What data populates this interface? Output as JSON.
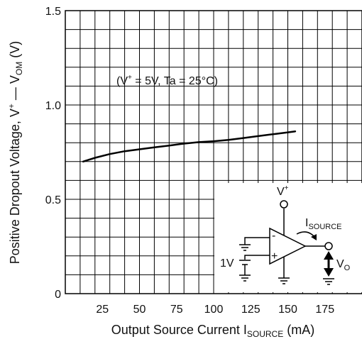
{
  "chart_data": {
    "type": "line",
    "xlabel": {
      "main": "Output Source Current I",
      "sub": "SOURCE",
      "unit": " (mA)"
    },
    "ylabel": {
      "main": "Positive Dropout Voltage, V",
      "sup": "+",
      "dash": " — V",
      "sub": "OM",
      "unit": " (V)"
    },
    "xlim": [
      0,
      200
    ],
    "ylim": [
      0,
      1.5
    ],
    "x_ticks": [
      {
        "value": 25,
        "label": "25"
      },
      {
        "value": 50,
        "label": "50"
      },
      {
        "value": 75,
        "label": "75"
      },
      {
        "value": 100,
        "label": "100"
      },
      {
        "value": 125,
        "label": "125"
      },
      {
        "value": 150,
        "label": "150"
      },
      {
        "value": 175,
        "label": "175"
      }
    ],
    "y_ticks": [
      {
        "value": 0,
        "label": "0"
      },
      {
        "value": 0.5,
        "label": "0.5"
      },
      {
        "value": 1.0,
        "label": "1.0"
      },
      {
        "value": 1.5,
        "label": "1.5"
      }
    ],
    "grid": true,
    "grid_minor_x": 10,
    "grid_minor_y": 0.1,
    "annotation": {
      "open": "(V",
      "sup": "+",
      "rest": " = 5V, Ta = 25°C)"
    },
    "series": [
      {
        "color": "#000000",
        "points": [
          [
            12,
            0.7
          ],
          [
            20,
            0.72
          ],
          [
            30,
            0.74
          ],
          [
            40,
            0.755
          ],
          [
            50,
            0.765
          ],
          [
            60,
            0.775
          ],
          [
            70,
            0.785
          ],
          [
            80,
            0.795
          ],
          [
            90,
            0.803
          ],
          [
            100,
            0.808
          ],
          [
            110,
            0.815
          ],
          [
            120,
            0.825
          ],
          [
            130,
            0.835
          ],
          [
            140,
            0.845
          ],
          [
            150,
            0.855
          ],
          [
            155,
            0.86
          ]
        ]
      }
    ],
    "inset_circuit": {
      "vplus": {
        "main": "V",
        "sup": "+"
      },
      "isource": {
        "main": "I",
        "sub": "SOURCE"
      },
      "vo": {
        "main": "V",
        "sub": "O"
      },
      "source_label": "1V",
      "minus_sign": "-",
      "plus_sign": "+"
    }
  }
}
